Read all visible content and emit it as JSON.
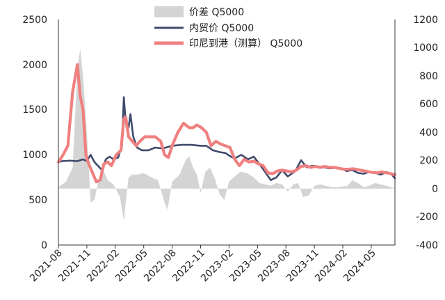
{
  "chart_data": {
    "type": "line",
    "x_tick_labels": [
      "2021-08",
      "2021-11",
      "2022-02",
      "2022-05",
      "2022-08",
      "2022-11",
      "2023-02",
      "2023-05",
      "2023-08",
      "2023-11",
      "2024-02",
      "2024-05"
    ],
    "y_left": {
      "ticks": [
        "0",
        "500",
        "1000",
        "1500",
        "2000",
        "2500"
      ],
      "ylim": [
        0,
        2500
      ]
    },
    "y_right": {
      "ticks": [
        "-400",
        "-200",
        "0",
        "200",
        "400",
        "600",
        "800",
        "1000",
        "1200"
      ],
      "ylim": [
        -400,
        1200
      ]
    },
    "x_range_months": [
      0,
      35.5
    ],
    "legend": [
      {
        "label": "价差 Q5000",
        "color": "#d4d4d4",
        "kind": "area"
      },
      {
        "label": "内贸价 Q5000",
        "color": "#3f4a6b",
        "kind": "line"
      },
      {
        "label": "印尼到港（测算） Q5000",
        "color": "#f08080",
        "kind": "line"
      }
    ],
    "series": [
      {
        "name": "内贸价 Q5000",
        "axis": "left",
        "color": "#3f4a6b",
        "x": [
          0,
          0.4,
          1.2,
          2.0,
          2.6,
          3.0,
          3.4,
          3.8,
          4.6,
          5.0,
          5.4,
          5.8,
          6.3,
          6.7,
          6.9,
          7.05,
          7.2,
          7.4,
          7.6,
          7.9,
          8.3,
          8.8,
          9.5,
          10.2,
          11.0,
          12.0,
          13.0,
          14.0,
          15.0,
          15.6,
          16.3,
          17.0,
          17.6,
          18.2,
          18.6,
          19.3,
          20.0,
          20.6,
          21.2,
          21.8,
          22.4,
          23.0,
          23.6,
          24.2,
          25.0,
          25.6,
          26.2,
          26.8,
          27.4,
          28.0,
          28.6,
          29.2,
          29.8,
          30.4,
          31.0,
          31.6,
          32.2,
          32.8,
          33.4,
          34.0,
          34.6,
          35.1,
          35.5
        ],
        "values": [
          920,
          930,
          935,
          930,
          950,
          930,
          1000,
          920,
          830,
          950,
          980,
          950,
          970,
          1100,
          1640,
          1430,
          1300,
          1300,
          1450,
          1200,
          1080,
          1050,
          1050,
          1080,
          1070,
          1100,
          1110,
          1110,
          1100,
          1100,
          1050,
          1030,
          1020,
          980,
          960,
          1000,
          950,
          980,
          900,
          810,
          720,
          750,
          830,
          760,
          820,
          940,
          860,
          880,
          870,
          860,
          850,
          855,
          850,
          820,
          830,
          800,
          790,
          810,
          800,
          780,
          810,
          790,
          740
        ]
      },
      {
        "name": "印尼到港（测算） Q5000",
        "axis": "left",
        "color": "#f08080",
        "x": [
          0,
          0.5,
          1.0,
          1.5,
          2.0,
          2.3,
          2.6,
          2.9,
          3.2,
          3.6,
          4.0,
          4.4,
          4.8,
          5.2,
          5.6,
          6.1,
          6.6,
          6.9,
          7.1,
          7.4,
          7.8,
          8.2,
          8.6,
          9.1,
          9.6,
          10.2,
          10.8,
          11.2,
          11.6,
          12.0,
          12.6,
          13.2,
          13.8,
          14.2,
          14.6,
          15.1,
          15.6,
          16.1,
          16.6,
          17.1,
          17.6,
          18.1,
          18.6,
          19.1,
          19.6,
          20.1,
          20.6,
          21.1,
          21.6,
          22.1,
          22.6,
          23.1,
          23.6,
          24.1,
          24.6,
          25.1,
          25.6,
          26.1,
          26.6,
          27.1,
          27.6,
          28.1,
          28.6,
          29.1,
          29.6,
          30.1,
          30.6,
          31.1,
          31.6,
          32.1,
          32.6,
          33.1,
          33.6,
          34.1,
          34.6,
          35.1,
          35.5
        ],
        "values": [
          920,
          1000,
          1100,
          1700,
          2000,
          1650,
          1500,
          1000,
          900,
          800,
          700,
          720,
          900,
          920,
          880,
          1000,
          1050,
          1400,
          1420,
          1200,
          1150,
          1100,
          1150,
          1200,
          1200,
          1200,
          1150,
          1000,
          970,
          1100,
          1250,
          1350,
          1300,
          1300,
          1330,
          1300,
          1250,
          1100,
          1150,
          1120,
          1100,
          1080,
          950,
          880,
          950,
          920,
          930,
          900,
          880,
          800,
          790,
          820,
          830,
          820,
          810,
          830,
          870,
          880,
          860,
          870,
          860,
          870,
          860,
          860,
          850,
          840,
          840,
          845,
          835,
          825,
          815,
          805,
          800,
          810,
          800,
          790,
          780
        ]
      },
      {
        "name": "价差 Q5000",
        "axis": "right",
        "color": "#d4d4d4",
        "x": [
          0,
          0.8,
          1.5,
          2.0,
          2.3,
          2.6,
          3.0,
          3.4,
          3.8,
          4.3,
          4.8,
          5.2,
          5.8,
          6.5,
          6.9,
          7.1,
          7.4,
          7.8,
          8.4,
          9.0,
          9.8,
          10.5,
          11.2,
          11.5,
          12.0,
          12.8,
          13.4,
          13.8,
          14.2,
          14.6,
          15.0,
          15.5,
          16.0,
          16.5,
          17.0,
          17.5,
          18.0,
          18.5,
          19.2,
          19.9,
          20.6,
          21.2,
          21.8,
          22.4,
          23.0,
          23.6,
          24.2,
          24.8,
          25.3,
          25.8,
          26.4,
          27.0,
          27.6,
          28.2,
          28.8,
          29.4,
          30.0,
          30.5,
          31.0,
          31.6,
          32.2,
          32.8,
          33.4,
          34.0,
          34.6,
          35.1,
          35.5
        ],
        "values": [
          10,
          50,
          150,
          850,
          990,
          800,
          400,
          -100,
          -80,
          80,
          120,
          60,
          30,
          -60,
          -230,
          -100,
          80,
          100,
          100,
          110,
          80,
          60,
          -100,
          -150,
          50,
          100,
          200,
          230,
          150,
          100,
          -30,
          120,
          150,
          70,
          -40,
          -80,
          50,
          80,
          120,
          110,
          80,
          40,
          30,
          20,
          40,
          30,
          -20,
          30,
          40,
          -60,
          -50,
          20,
          30,
          20,
          10,
          10,
          15,
          20,
          60,
          40,
          10,
          20,
          40,
          30,
          20,
          10,
          0
        ]
      }
    ]
  }
}
